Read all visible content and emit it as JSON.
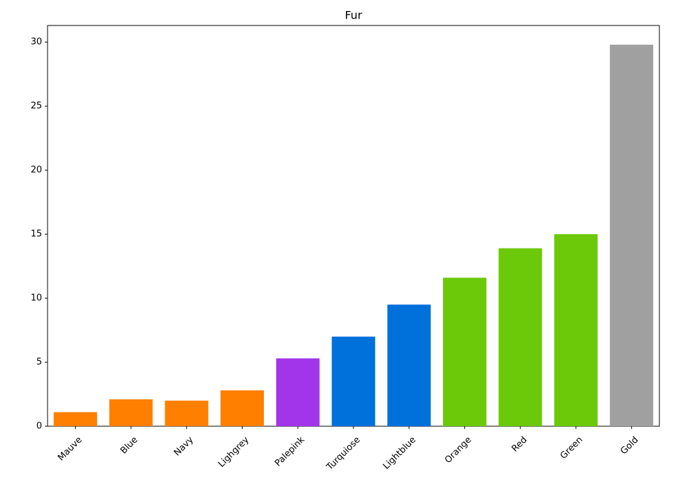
{
  "chart_data": {
    "type": "bar",
    "title": "Fur",
    "categories": [
      "Mauve",
      "Blue",
      "Navy",
      "Lighgrey",
      "Palepink",
      "Turquiose",
      "Lightblue",
      "Orange",
      "Red",
      "Green",
      "Gold"
    ],
    "values": [
      1.1,
      2.1,
      2.0,
      2.8,
      5.3,
      7.0,
      9.5,
      11.6,
      13.9,
      15.0,
      29.8
    ],
    "colors": [
      "#ff7f00",
      "#ff7f00",
      "#ff7f00",
      "#ff7f00",
      "#a234ea",
      "#0070db",
      "#0070db",
      "#6bc90a",
      "#6bc90a",
      "#6bc90a",
      "#a0a0a0"
    ],
    "ylim": [
      0,
      31.3
    ],
    "yticks": [
      0,
      5,
      10,
      15,
      20,
      25,
      30
    ],
    "grid": false
  }
}
